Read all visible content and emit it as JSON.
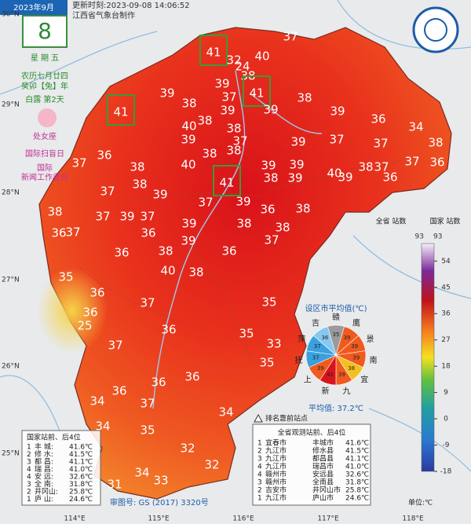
{
  "header": {
    "month": "2023年9月",
    "day": "8",
    "update_time": "更新时刻:2023-09-08 14:06:52",
    "maker": "江西省气象台制作"
  },
  "sidebar": {
    "weekday": "星 期 五",
    "lunar_date": "农历七月廿四",
    "lunar_year": "癸卯【兔】年",
    "solar_term": "白露 第2天",
    "zodiac": "处女座",
    "festival_1": "国际扫盲日",
    "festival_2_line1": "国际",
    "festival_2_line2": "新闻工作者日"
  },
  "axes": {
    "latitudes": [
      "30°N",
      "29°N",
      "28°N",
      "27°N",
      "26°N",
      "25°N"
    ],
    "longitudes": [
      "114°E",
      "115°E",
      "116°E",
      "117°E",
      "118°E"
    ]
  },
  "stations": {
    "values": [
      37,
      41,
      32,
      24,
      40,
      38,
      39,
      37,
      41,
      39,
      38,
      39,
      39,
      38,
      39,
      36,
      34,
      41,
      40,
      38,
      39,
      38,
      37,
      39,
      37,
      37,
      38,
      36,
      38,
      40,
      38,
      38,
      39,
      39,
      37,
      40,
      38,
      37,
      37,
      36,
      38,
      41,
      38,
      39,
      39,
      36,
      37,
      39,
      37,
      39,
      36,
      38,
      37,
      39,
      37,
      38,
      36,
      37,
      39,
      38,
      38,
      36,
      39,
      37,
      36,
      38,
      36,
      38,
      35,
      40,
      36,
      36,
      37,
      35,
      36,
      25,
      37,
      35,
      33,
      36,
      36,
      35,
      36,
      37,
      34,
      34,
      35,
      34,
      32,
      32,
      34,
      31,
      33
    ]
  },
  "legend": {
    "province_label": "全省\n站数",
    "province_count": 93,
    "national_label": "国家\n站数",
    "national_count": 93,
    "ticks": [
      54,
      45,
      36,
      27,
      18,
      9,
      0,
      -9,
      -18
    ],
    "ylim": [
      -18,
      60
    ],
    "unit": "单位:℃"
  },
  "pie": {
    "title": "设区市平均值(℃)",
    "categories": [
      "赣",
      "鹰",
      "景",
      "南",
      "宜",
      "九",
      "新",
      "上",
      "抚",
      "萍",
      "吉"
    ],
    "values": [
      35,
      39,
      39,
      39,
      38,
      39,
      41,
      39,
      37,
      37,
      36
    ],
    "average": "平均值: 37.2℃"
  },
  "ranking_note": "排名靠前站点",
  "national_table": {
    "title": "国家站前、后4位",
    "rows": [
      [
        "1",
        "丰 城:",
        "41.6℃"
      ],
      [
        "2",
        "修 水:",
        "41.5℃"
      ],
      [
        "3",
        "都 昌:",
        "41.1℃"
      ],
      [
        "4",
        "瑞 昌:",
        "41.0℃"
      ],
      [
        "4",
        "安 远:",
        "32.6℃"
      ],
      [
        "3",
        "全 南:",
        "31.8℃"
      ],
      [
        "2",
        "井冈山:",
        "25.8℃"
      ],
      [
        "1",
        "庐 山:",
        "24.6℃"
      ]
    ]
  },
  "province_table": {
    "title": "全省观测站前、后4位",
    "rows": [
      [
        "1",
        "宜春市",
        "丰城市",
        "41.6℃"
      ],
      [
        "2",
        "九江市",
        "修水县",
        "41.5℃"
      ],
      [
        "3",
        "九江市",
        "都昌县",
        "41.1℃"
      ],
      [
        "4",
        "九江市",
        "瑞昌市",
        "41.0℃"
      ],
      [
        "4",
        "赣州市",
        "安远县",
        "32.6℃"
      ],
      [
        "3",
        "赣州市",
        "全南县",
        "31.8℃"
      ],
      [
        "2",
        "吉安市",
        "井冈山市",
        "25.8℃"
      ],
      [
        "1",
        "九江市",
        "庐山市",
        "24.6℃"
      ]
    ]
  },
  "approval": "审图号: GS (2017) 3320号"
}
